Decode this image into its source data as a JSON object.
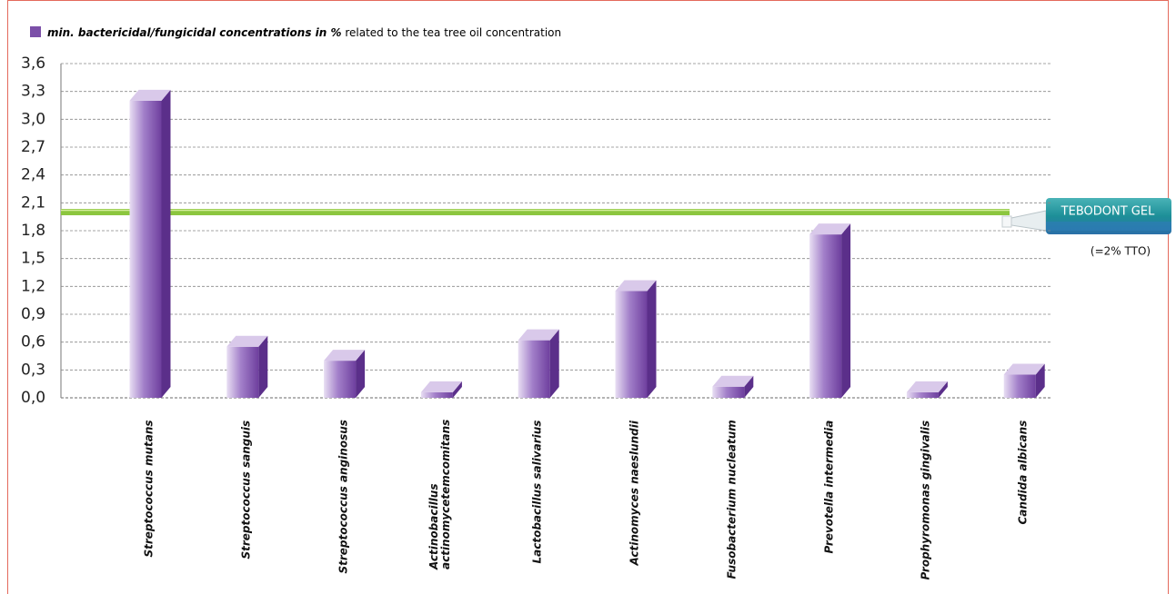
{
  "chart_data": {
    "type": "bar3d",
    "series": [
      {
        "name": "min. bactericidal/fungicidal concentrations in %",
        "color": "#7b4fa8",
        "values": [
          3.2,
          0.55,
          0.4,
          0.06,
          0.62,
          1.15,
          0.12,
          1.76,
          0.06,
          0.25
        ]
      }
    ],
    "legend_suffix": "related to the tea tree oil concentration",
    "categories": [
      "Streptococcus mutans",
      "Streptococcus sanguis",
      "Streptococcus anginosus",
      "Actinobacillus\nactinomycetemcomitans",
      "Lactobacillus salivarius",
      "Actinomyces naeslundii",
      "Fusobacterium nucleatum",
      "Prevotella intermedia",
      "Prophyromonas gingivalis",
      "Candida albicans"
    ],
    "ylim": [
      0,
      3.6
    ],
    "yticks": [
      {
        "value": 0,
        "label": "0,0"
      },
      {
        "value": 0.3,
        "label": "0,3"
      },
      {
        "value": 0.6,
        "label": "0,6"
      },
      {
        "value": 0.9,
        "label": "0,9"
      },
      {
        "value": 1.2,
        "label": "1,2"
      },
      {
        "value": 1.5,
        "label": "1,5"
      },
      {
        "value": 1.8,
        "label": "1,8"
      },
      {
        "value": 2.1,
        "label": "2,1"
      },
      {
        "value": 2.4,
        "label": "2,4"
      },
      {
        "value": 2.7,
        "label": "2,7"
      },
      {
        "value": 3.0,
        "label": "3,0"
      },
      {
        "value": 3.3,
        "label": "3,3"
      },
      {
        "value": 3.6,
        "label": "3,6"
      }
    ],
    "grid": true,
    "threshold": {
      "value": 2,
      "color": "#8cc63f",
      "label": "TEBODONT GEL",
      "note": "(=2% TTO)"
    }
  }
}
